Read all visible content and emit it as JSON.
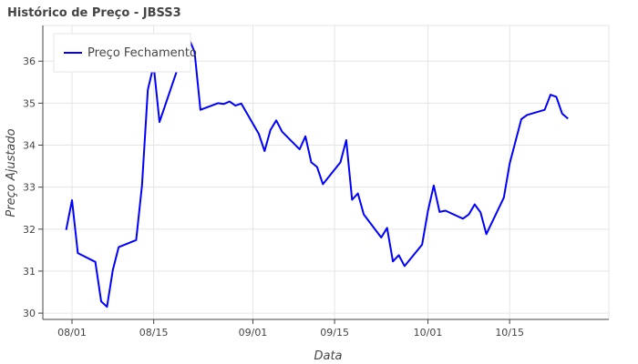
{
  "chart_data": {
    "type": "line",
    "title": "Histórico de Preço - JBSS3",
    "xlabel": "Data",
    "ylabel": "Preço Ajustado",
    "x_tick_labels": [
      "08/01",
      "08/15",
      "09/01",
      "09/15",
      "10/01",
      "10/15"
    ],
    "x_tick_dates": [
      "2018-08-01",
      "2018-08-15",
      "2018-09-01",
      "2018-09-15",
      "2018-10-01",
      "2018-10-15"
    ],
    "xlim": [
      "2018-07-27",
      "2018-11-01"
    ],
    "ylim": [
      29.85,
      36.85
    ],
    "y_ticks": [
      30,
      31,
      32,
      33,
      34,
      35,
      36
    ],
    "grid": true,
    "legend_position": "top-left",
    "line_color": "#0000ff",
    "series": [
      {
        "name": "Preço Fechamento",
        "x": [
          "2018-07-31",
          "2018-08-01",
          "2018-08-02",
          "2018-08-05",
          "2018-08-06",
          "2018-08-07",
          "2018-08-08",
          "2018-08-09",
          "2018-08-12",
          "2018-08-13",
          "2018-08-14",
          "2018-08-15",
          "2018-08-16",
          "2018-08-19",
          "2018-08-20",
          "2018-08-21",
          "2018-08-22",
          "2018-08-23",
          "2018-08-26",
          "2018-08-27",
          "2018-08-28",
          "2018-08-29",
          "2018-08-30",
          "2018-09-02",
          "2018-09-03",
          "2018-09-04",
          "2018-09-05",
          "2018-09-06",
          "2018-09-09",
          "2018-09-10",
          "2018-09-11",
          "2018-09-12",
          "2018-09-13",
          "2018-09-16",
          "2018-09-17",
          "2018-09-18",
          "2018-09-19",
          "2018-09-20",
          "2018-09-23",
          "2018-09-24",
          "2018-09-25",
          "2018-09-26",
          "2018-09-27",
          "2018-09-30",
          "2018-10-01",
          "2018-10-02",
          "2018-10-03",
          "2018-10-04",
          "2018-10-07",
          "2018-10-08",
          "2018-10-09",
          "2018-10-10",
          "2018-10-11",
          "2018-10-14",
          "2018-10-15",
          "2018-10-17",
          "2018-10-18",
          "2018-10-21",
          "2018-10-22",
          "2018-10-23",
          "2018-10-24",
          "2018-10-25"
        ],
        "values": [
          31.98,
          32.69,
          31.43,
          31.22,
          30.28,
          30.15,
          31.03,
          31.57,
          31.74,
          33.04,
          35.32,
          35.9,
          34.55,
          35.78,
          36.43,
          36.55,
          36.22,
          34.84,
          35.0,
          34.98,
          35.04,
          34.94,
          34.99,
          34.27,
          33.86,
          34.36,
          34.59,
          34.32,
          33.9,
          34.21,
          33.59,
          33.48,
          33.07,
          33.59,
          34.12,
          32.7,
          32.85,
          32.35,
          31.8,
          32.03,
          31.23,
          31.38,
          31.12,
          31.63,
          32.43,
          33.04,
          32.41,
          32.44,
          32.25,
          32.35,
          32.59,
          32.4,
          31.88,
          32.75,
          33.56,
          34.62,
          34.72,
          34.84,
          35.2,
          35.15,
          34.75,
          34.63
        ]
      }
    ]
  }
}
